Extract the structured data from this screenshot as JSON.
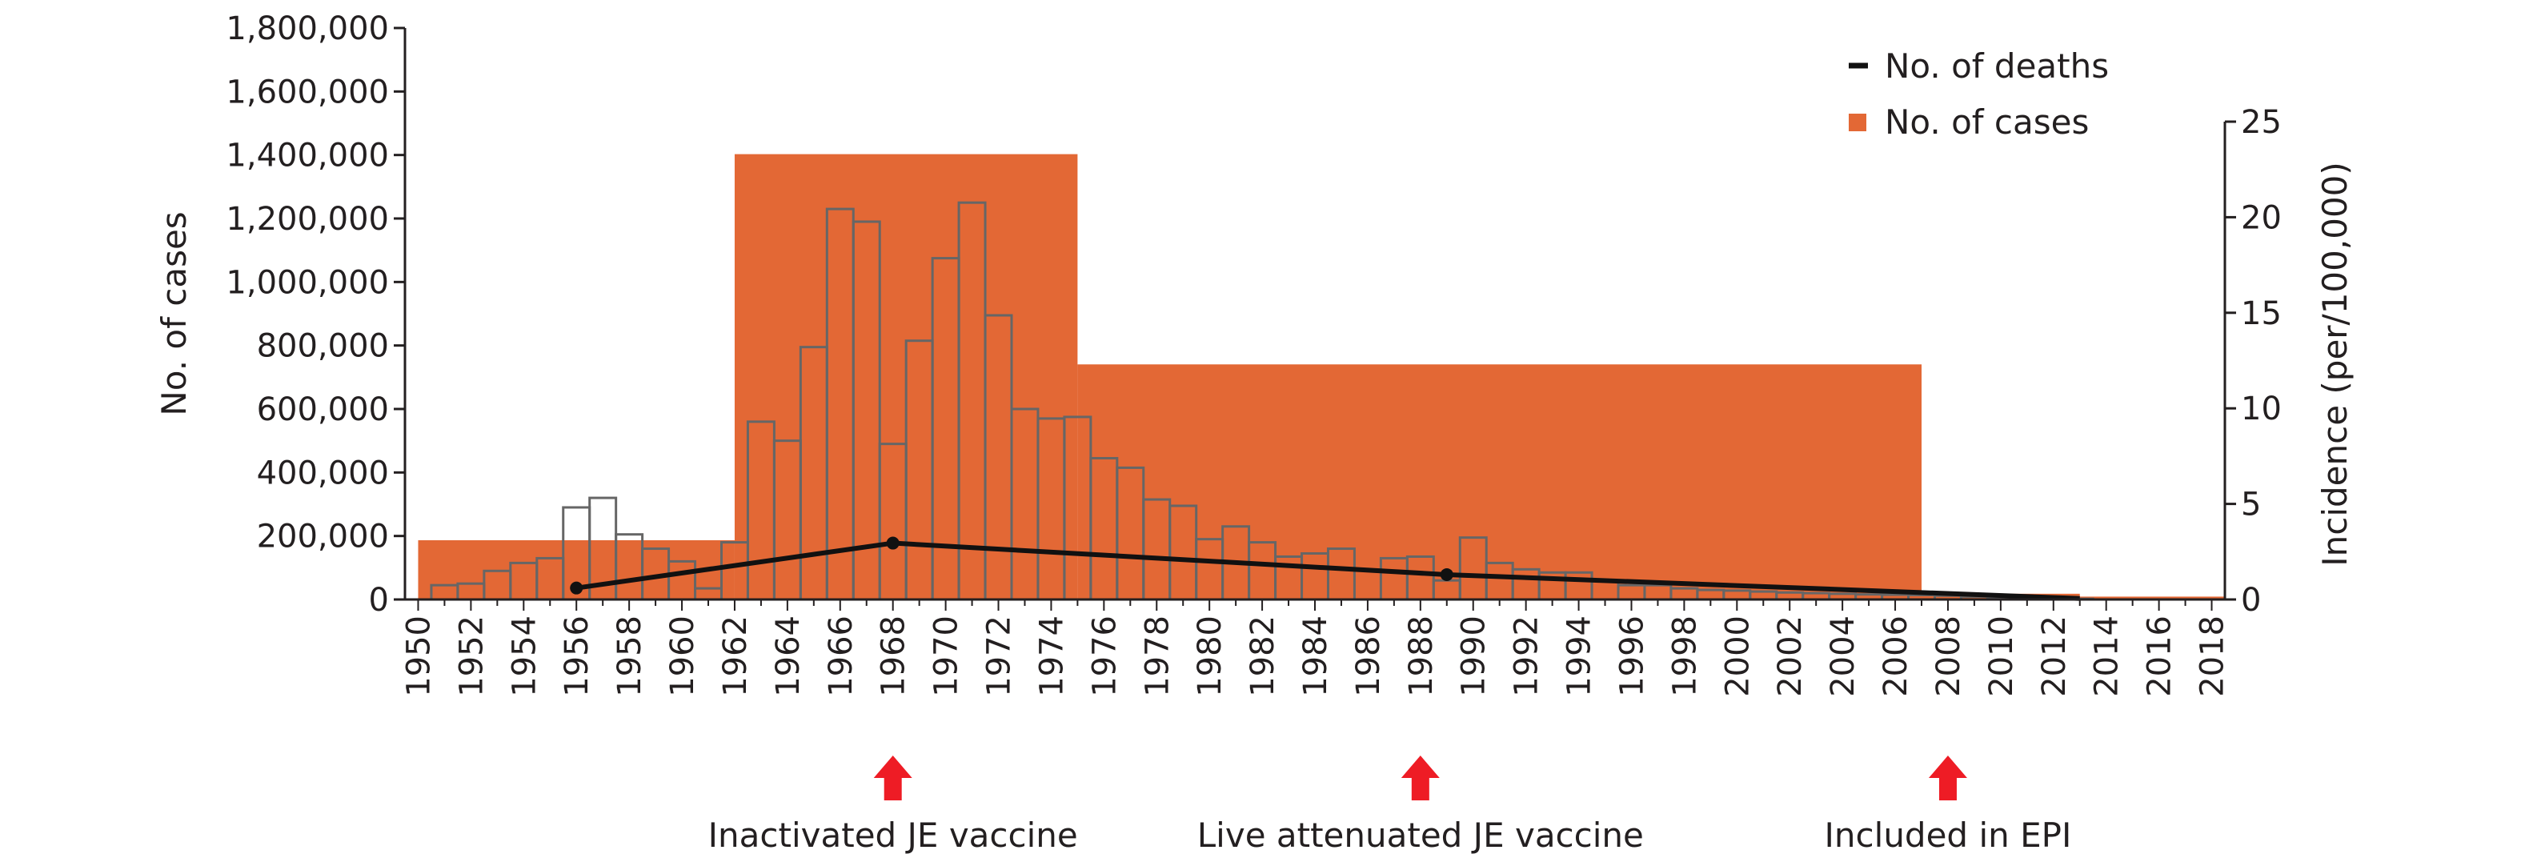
{
  "colors": {
    "incidence_fill": "#E36835",
    "bar_stroke": "#666666",
    "deaths_line": "#111111",
    "arrow": "#EE1C25",
    "axis": "#231F20"
  },
  "chart_data": {
    "type": "bar",
    "x_ticks": [
      "1950",
      "1952",
      "1954",
      "1956",
      "1958",
      "1960",
      "1962",
      "1964",
      "1966",
      "1968",
      "1970",
      "1972",
      "1974",
      "1976",
      "1978",
      "1980",
      "1982",
      "1984",
      "1986",
      "1988",
      "1990",
      "1992",
      "1994",
      "1996",
      "1998",
      "2000",
      "2002",
      "2004",
      "2006",
      "2008",
      "2010",
      "2012",
      "2014",
      "2016",
      "2018"
    ],
    "xlim": [
      1949.5,
      2018.5
    ],
    "left_axis": {
      "label": "No. of cases",
      "ylim": [
        0,
        1800000
      ],
      "ticks": [
        0,
        200000,
        400000,
        600000,
        800000,
        1000000,
        1200000,
        1400000,
        1600000,
        1800000
      ],
      "tick_labels": [
        "0",
        "200,000",
        "400,000",
        "600,000",
        "800,000",
        "1,000,000",
        "1,200,000",
        "1,400,000",
        "1,600,000",
        "1,800,000"
      ]
    },
    "right_axis": {
      "label": "Incidence (per/100,000)",
      "ylim": [
        0,
        25
      ],
      "ticks": [
        0,
        5,
        10,
        15,
        20,
        25
      ],
      "tick_labels": [
        "0",
        "5",
        "10",
        "15",
        "20",
        "25"
      ]
    },
    "incidence_blocks": [
      {
        "start": 1950,
        "end": 1962,
        "value": 3.1
      },
      {
        "start": 1962,
        "end": 1975,
        "value": 23.3
      },
      {
        "start": 1975,
        "end": 2007,
        "value": 12.3
      },
      {
        "start": 2007,
        "end": 2013,
        "value": 0.3
      },
      {
        "start": 2013,
        "end": 2018.5,
        "value": 0.15
      }
    ],
    "cases": {
      "years": [
        1950,
        1951,
        1952,
        1953,
        1954,
        1955,
        1956,
        1957,
        1958,
        1959,
        1960,
        1961,
        1962,
        1963,
        1964,
        1965,
        1966,
        1967,
        1968,
        1969,
        1970,
        1971,
        1972,
        1973,
        1974,
        1975,
        1976,
        1977,
        1978,
        1979,
        1980,
        1981,
        1982,
        1983,
        1984,
        1985,
        1986,
        1987,
        1988,
        1989,
        1990,
        1991,
        1992,
        1993,
        1994,
        1995,
        1996,
        1997,
        1998,
        1999,
        2000,
        2001,
        2002,
        2003,
        2004,
        2005,
        2006,
        2007,
        2008,
        2009,
        2010,
        2011,
        2012,
        2013
      ],
      "values": [
        0,
        45000,
        50000,
        90000,
        115000,
        130000,
        290000,
        320000,
        205000,
        160000,
        120000,
        35000,
        180000,
        560000,
        500000,
        795000,
        1230000,
        1190000,
        490000,
        815000,
        1075000,
        1250000,
        895000,
        600000,
        570000,
        575000,
        445000,
        415000,
        315000,
        295000,
        190000,
        230000,
        180000,
        135000,
        145000,
        160000,
        0,
        130000,
        135000,
        60000,
        195000,
        115000,
        95000,
        85000,
        85000,
        60000,
        45000,
        45000,
        35000,
        30000,
        28000,
        25000,
        22000,
        20000,
        18000,
        16000,
        15000,
        14000,
        12000,
        9000,
        6000,
        4000,
        3000,
        2000
      ]
    },
    "deaths": {
      "name": "No. of deaths",
      "points": [
        {
          "year": 1956,
          "value": 0.6
        },
        {
          "year": 1968,
          "value": 2.95
        },
        {
          "year": 1989,
          "value": 1.3
        },
        {
          "year": 2013,
          "value": 0.05
        }
      ]
    },
    "legend": {
      "position": "top-right",
      "items": [
        {
          "label": "No. of deaths",
          "marker": "line"
        },
        {
          "label": "No. of cases",
          "marker": "square"
        }
      ]
    },
    "annotations": [
      {
        "year": 1968,
        "text": "Inactivated JE vaccine"
      },
      {
        "year": 1988,
        "text": "Live attenuated JE vaccine"
      },
      {
        "year": 2008,
        "text": "Included in EPI"
      }
    ]
  }
}
